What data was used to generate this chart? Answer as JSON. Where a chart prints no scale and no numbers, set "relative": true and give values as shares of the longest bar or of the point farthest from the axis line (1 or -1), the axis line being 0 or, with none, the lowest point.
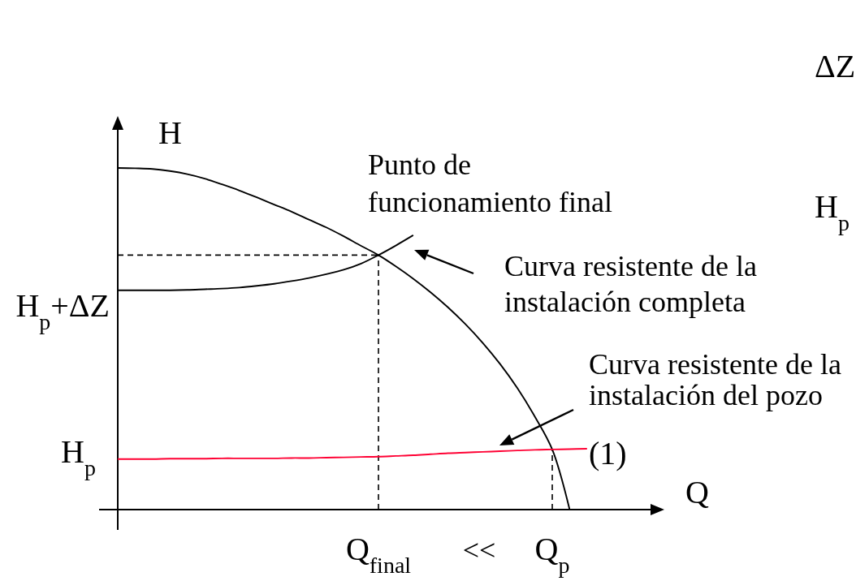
{
  "chart_data": {
    "type": "line",
    "relative": true,
    "xlabel": "Q",
    "ylabel": "H",
    "categories": [
      null,
      null,
      null,
      null,
      null,
      null,
      null,
      null,
      null,
      null,
      null,
      null,
      null,
      null,
      null,
      "Q$_{final}$",
      null,
      null,
      null,
      null,
      null,
      null,
      null,
      null,
      null,
      "Q$_{p}$",
      null,
      null
    ],
    "series": [
      {
        "color": "#000000",
        "values": [
          1,
          0.999,
          0.997,
          0.991,
          0.982,
          0.969,
          0.952,
          0.934,
          0.914,
          0.893,
          0.872,
          0.849,
          0.826,
          0.8,
          0.772,
          0.745,
          0.712,
          0.676,
          0.636,
          0.592,
          0.543,
          0.488,
          0.426,
          0.355,
          0.272,
          0.176,
          0,
          null
        ]
      },
      {
        "color": "#000000",
        "values": [
          0.642,
          0.642,
          0.642,
          0.642,
          0.643,
          0.645,
          0.647,
          0.65,
          0.655,
          0.661,
          0.669,
          0.678,
          0.689,
          0.702,
          0.72,
          0.745,
          0.773,
          0.803,
          null,
          null,
          null,
          null,
          null,
          null,
          null,
          null,
          null,
          null
        ]
      },
      {
        "color": "#ff0033",
        "values": [
          0.148,
          0.148,
          0.148,
          0.149,
          0.149,
          0.149,
          0.15,
          0.15,
          0.15,
          0.15,
          0.151,
          0.151,
          0.152,
          0.153,
          0.154,
          0.155,
          0.157,
          0.159,
          0.162,
          0.165,
          0.167,
          0.169,
          0.171,
          0.173,
          0.175,
          0.176,
          0.177,
          0.178
        ]
      },
      {
        "color": "#000000",
        "line_style": "dashed",
        "values": [
          0.745,
          0.745,
          0.745,
          0.745,
          0.745,
          0.745,
          0.745,
          0.745,
          0.745,
          0.745,
          0.745,
          0.745,
          0.745,
          0.745,
          0.745,
          0.745,
          null,
          null,
          null,
          null,
          null,
          null,
          null,
          null,
          null,
          null,
          null,
          null
        ]
      }
    ],
    "ref_lines": [
      {
        "axis": "x",
        "value": "Q$_{final}$",
        "color": "#000000",
        "line_style": "dashed"
      },
      {
        "axis": "x",
        "value": "Q$_{p}$",
        "color": "#000000",
        "line_style": "dashed"
      }
    ],
    "annotations": [
      "H$_{p}$+ΔZ",
      "H$_{p}$",
      "Punto de\nfuncionamiento final",
      "Curva resistente de la\ninstalación completa",
      "Curva resistente de la\ninstalación del pozo",
      "(1)",
      "<<",
      "ΔZ",
      "H$_{p}$"
    ]
  }
}
